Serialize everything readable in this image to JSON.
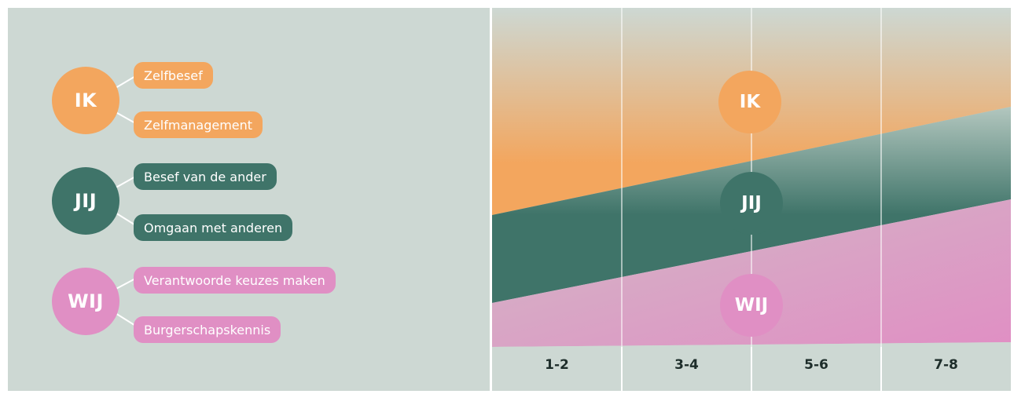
{
  "colors": {
    "ik": "#f3a65e",
    "jij": "#3f7469",
    "wij": "#e08fc4",
    "background": "#cdd8d3"
  },
  "groups": [
    {
      "label": "IK",
      "items": [
        "Zelfbesef",
        "Zelfmanagement"
      ]
    },
    {
      "label": "JIJ",
      "items": [
        "Besef van de ander",
        "Omgaan met anderen"
      ]
    },
    {
      "label": "WIJ",
      "items": [
        "Verantwoorde keuzes maken",
        "Burgerschapskennis"
      ]
    }
  ],
  "chart_data": {
    "type": "area",
    "categories": [
      "1-2",
      "3-4",
      "5-6",
      "7-8"
    ],
    "series": [
      {
        "name": "IK"
      },
      {
        "name": "JIJ"
      },
      {
        "name": "WIJ"
      }
    ]
  }
}
